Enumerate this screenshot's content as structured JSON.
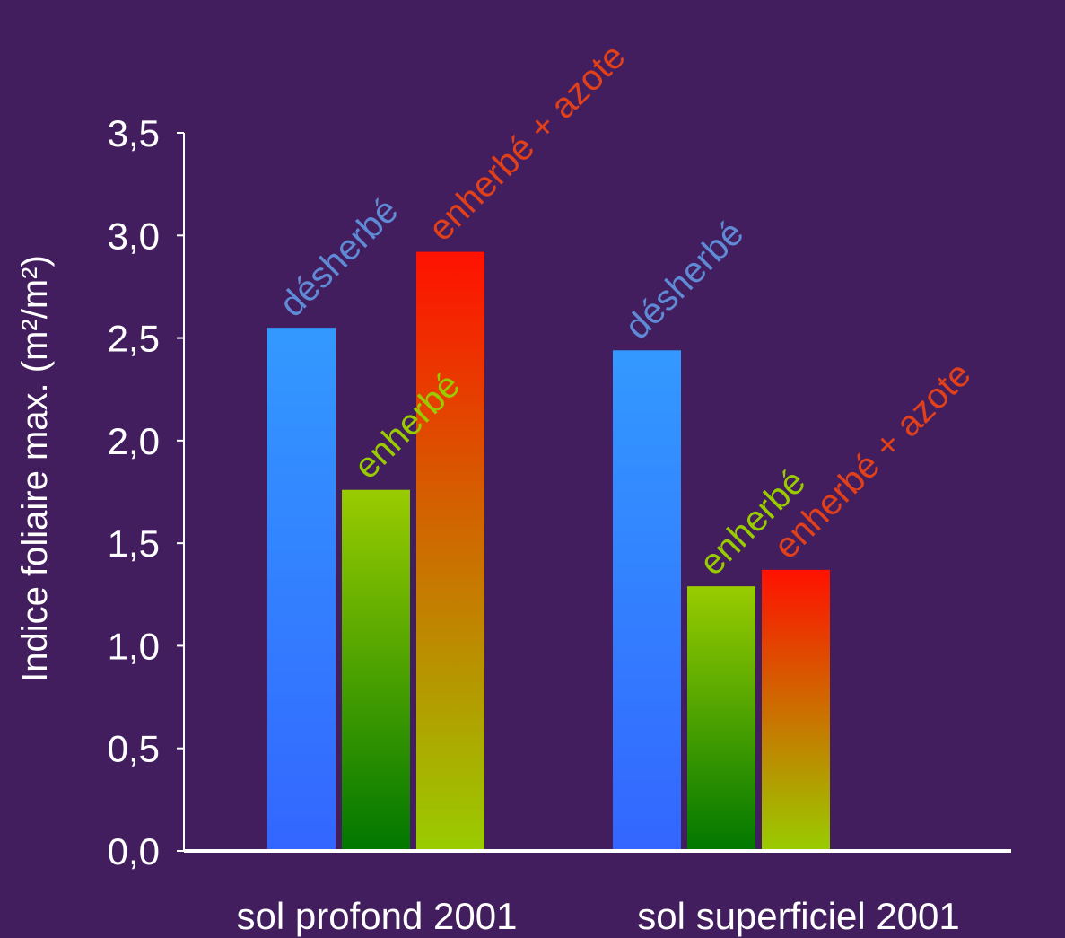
{
  "colors": {
    "background": "#431e5e",
    "axis": "#ffffff",
    "text": "#ffffff",
    "desherbe_label": "#5f8ad6",
    "enherbe_label": "#99cc00",
    "azote_label": "#e0401a"
  },
  "chart_data": {
    "type": "bar",
    "ylabel": "Indice foliaire max. (m²/m²)",
    "xlabel": "",
    "ylim": [
      0,
      3.5
    ],
    "yticks": [
      "0,0",
      "0,5",
      "1,0",
      "1,5",
      "2,0",
      "2,5",
      "3,0",
      "3,5"
    ],
    "categories": [
      "sol profond 2001",
      "sol superficiel 2001"
    ],
    "series": [
      {
        "name": "désherbé",
        "values": [
          2.55,
          2.44
        ],
        "gradient": [
          "#3399ff",
          "#3366ff"
        ]
      },
      {
        "name": "enherbé",
        "values": [
          1.76,
          1.29
        ],
        "gradient": [
          "#99cc00",
          "#007700"
        ]
      },
      {
        "name": "enherbé + azote",
        "values": [
          2.92,
          1.37
        ],
        "gradient": [
          "#ff1100",
          "#99cc00"
        ]
      }
    ],
    "grid": false,
    "legend": "labels above bars"
  }
}
